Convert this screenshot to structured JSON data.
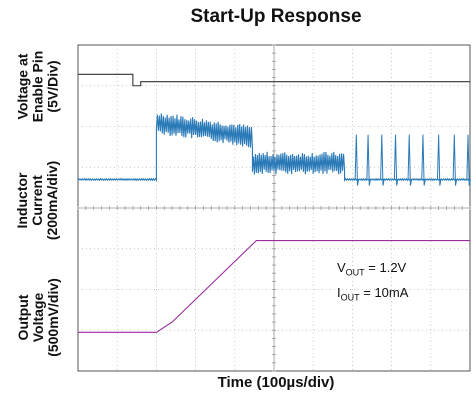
{
  "chart_data": {
    "type": "line",
    "title": "Start-Up Response",
    "xlabel": "Time (100µs/div)",
    "x_divisions": 10,
    "y_divisions": 8,
    "grid": true,
    "ylabels": [
      {
        "lines": [
          "Voltage at",
          "Enable Pin",
          "(5V/Div)"
        ]
      },
      {
        "lines": [
          "Inductor",
          "Current",
          "(200mA/div)"
        ]
      },
      {
        "lines": [
          "Output",
          "Voltage",
          "(500mV/div)"
        ]
      }
    ],
    "series": [
      {
        "channel": "enable",
        "color": "#333333",
        "x_unit": "div",
        "y_unit": "div",
        "points": [
          [
            0,
            0.72
          ],
          [
            1.4,
            0.72
          ],
          [
            1.4,
            1.0
          ],
          [
            1.6,
            1.0
          ],
          [
            1.6,
            0.9
          ],
          [
            10,
            0.9
          ]
        ]
      },
      {
        "channel": "inductor_current",
        "color": "#2a7ab8",
        "x_unit": "div",
        "y_unit": "div",
        "baseline_div": 3.3,
        "segments": [
          {
            "from": 0.0,
            "to": 2.0,
            "level": 0.0,
            "ripple": 0.02
          },
          {
            "from": 2.0,
            "to": 4.45,
            "level_start": 1.4,
            "level_end": 1.05,
            "ripple": 0.28
          },
          {
            "from": 4.45,
            "to": 6.8,
            "level": 0.4,
            "ripple": 0.28
          },
          {
            "from": 6.8,
            "to": 10.0,
            "level": 0.0,
            "ripple": 0.02
          }
        ],
        "pulses": [
          7.1,
          7.4,
          7.75,
          8.1,
          8.45,
          8.8,
          9.2,
          9.6,
          9.95
        ],
        "pulse_height": 1.1
      },
      {
        "channel": "output_voltage",
        "color": "#9a2c9e",
        "x_unit": "div",
        "y_unit": "div",
        "points": [
          [
            0,
            7.05
          ],
          [
            2.0,
            7.05
          ],
          [
            2.4,
            6.8
          ],
          [
            4.55,
            4.8
          ],
          [
            10,
            4.8
          ]
        ]
      }
    ],
    "annotations": [
      {
        "main": "V",
        "sub": "OUT",
        "rest": " = 1.2V"
      },
      {
        "main": "I",
        "sub": "OUT",
        "rest": " = 10mA"
      }
    ]
  }
}
